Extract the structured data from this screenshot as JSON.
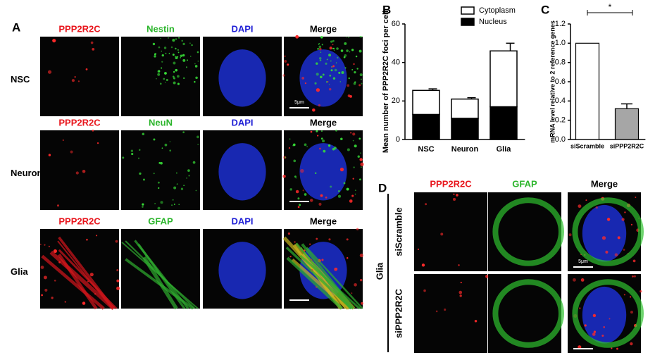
{
  "panel_a": {
    "label": "A",
    "rows": [
      {
        "name": "NSC",
        "channels": [
          "PPP2R2C",
          "Nestin",
          "DAPI",
          "Merge"
        ]
      },
      {
        "name": "Neuron",
        "channels": [
          "PPP2R2C",
          "NeuN",
          "DAPI",
          "Merge"
        ]
      },
      {
        "name": "Glia",
        "channels": [
          "PPP2R2C",
          "GFAP",
          "DAPI",
          "Merge"
        ]
      }
    ],
    "scale_bar": "5μm"
  },
  "chart_data": [
    {
      "type": "stacked_bar",
      "panel_label": "B",
      "y_label": "Mean number of PPP2R2C foci per cell",
      "categories": [
        "NSC",
        "Neuron",
        "Glia"
      ],
      "series": [
        {
          "name": "Nucleus",
          "color": "#000000",
          "values": [
            13,
            11,
            17
          ],
          "errors": [
            1,
            0.5,
            1.5
          ]
        },
        {
          "name": "Cytoplasm",
          "color": "#ffffff",
          "values": [
            12.5,
            10,
            29
          ],
          "errors": [
            0.8,
            0.7,
            4
          ]
        }
      ],
      "ylim": [
        0,
        60
      ],
      "yticks": [
        0,
        20,
        40,
        60
      ]
    },
    {
      "type": "bar",
      "panel_label": "C",
      "y_label": "mRNA level relative to 2 reference genes",
      "categories": [
        "siScramble",
        "siPPP2R2C"
      ],
      "values": [
        1.0,
        0.32
      ],
      "errors": [
        null,
        0.05
      ],
      "colors": [
        "#ffffff",
        "#a6a6a6"
      ],
      "annotation": "*",
      "ylim": [
        0,
        1.2
      ],
      "yticks": [
        {
          "value": 0,
          "label": "0.0"
        },
        0.2,
        0.4,
        0.6,
        0.8,
        {
          "value": 1,
          "label": "1.0"
        },
        1.2
      ]
    }
  ],
  "panel_d": {
    "label": "D",
    "group": "Glia",
    "columns": [
      "PPP2R2C",
      "GFAP",
      "Merge"
    ],
    "rows": [
      "siScramble",
      "siPPP2R2C"
    ],
    "scale_bar": "5μm"
  }
}
